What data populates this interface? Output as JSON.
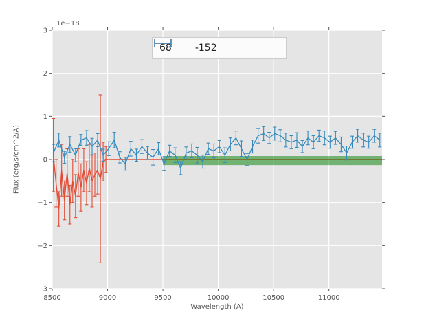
{
  "chart_data": {
    "type": "errorbar",
    "title": "",
    "xlabel": "Wavelength (A)",
    "ylabel": "Flux (erg/s/cm^2/A)",
    "offset_text": "1e−18",
    "xlim": [
      8500,
      11480
    ],
    "ylim": [
      -3,
      3
    ],
    "grid": true,
    "x_ticks": [
      8500,
      9000,
      9500,
      10000,
      10500,
      11000
    ],
    "x_tick_labels": [
      "8500",
      "9000",
      "9500",
      "10000",
      "10500",
      "11000"
    ],
    "y_ticks": [
      3,
      2,
      1,
      0,
      -1,
      -2,
      -3
    ],
    "y_tick_labels": [
      "3",
      "2",
      "1",
      "0",
      "−1",
      "−2",
      "−3"
    ],
    "colors": {
      "red_series": "#E24A33",
      "blue_series": "#348ABD",
      "green_band": "#008000",
      "plot_background": "#E5E5E5",
      "grid": "#FFFFFF",
      "ticks_and_labels": "#555555"
    },
    "legend": {
      "position": "upper center",
      "entries": [
        {
          "label": "68",
          "color": "#E24A33"
        },
        {
          "label": "-152",
          "color": "#348ABD"
        }
      ]
    },
    "series": [
      {
        "name": "68",
        "color": "#E24A33",
        "x": [
          8510,
          8535,
          8560,
          8585,
          8610,
          8635,
          8660,
          8685,
          8710,
          8735,
          8760,
          8785,
          8810,
          8835,
          8860,
          8885,
          8910,
          8935,
          8960,
          8985
        ],
        "y": [
          0.1,
          -0.55,
          -1.15,
          -0.25,
          -0.95,
          -0.3,
          -1.05,
          -0.5,
          -0.85,
          -0.3,
          -0.65,
          -0.25,
          -0.55,
          -0.2,
          -0.5,
          -0.35,
          -0.25,
          -0.45,
          -0.05,
          0.0
        ],
        "yerr": [
          0.85,
          0.55,
          0.4,
          0.6,
          0.45,
          0.55,
          0.45,
          0.5,
          0.5,
          0.55,
          0.55,
          0.5,
          0.5,
          0.55,
          0.6,
          0.5,
          0.55,
          1.95,
          0.45,
          0.3
        ]
      },
      {
        "name": "-152",
        "color": "#348ABD",
        "x": [
          8510,
          8560,
          8610,
          8660,
          8710,
          8760,
          8810,
          8860,
          8910,
          8960,
          9010,
          9060,
          9110,
          9160,
          9210,
          9260,
          9310,
          9360,
          9410,
          9460,
          9510,
          9560,
          9610,
          9660,
          9710,
          9760,
          9810,
          9860,
          9910,
          9960,
          10010,
          10060,
          10110,
          10160,
          10210,
          10260,
          10310,
          10360,
          10410,
          10460,
          10510,
          10560,
          10610,
          10660,
          10710,
          10760,
          10810,
          10860,
          10910,
          10960,
          11010,
          11060,
          11110,
          11160,
          11210,
          11260,
          11310,
          11360,
          11410,
          11460
        ],
        "y": [
          0.15,
          0.45,
          0.05,
          0.35,
          0.1,
          0.45,
          0.5,
          0.3,
          0.45,
          0.1,
          0.25,
          0.45,
          0.05,
          -0.1,
          0.25,
          0.1,
          0.3,
          0.15,
          0.05,
          0.25,
          -0.1,
          0.2,
          0.1,
          -0.2,
          0.15,
          0.2,
          0.1,
          -0.05,
          0.25,
          0.2,
          0.3,
          0.1,
          0.35,
          0.5,
          0.25,
          0.0,
          0.3,
          0.55,
          0.6,
          0.5,
          0.6,
          0.55,
          0.45,
          0.4,
          0.45,
          0.3,
          0.5,
          0.4,
          0.55,
          0.5,
          0.4,
          0.5,
          0.35,
          0.15,
          0.4,
          0.55,
          0.45,
          0.4,
          0.55,
          0.45
        ],
        "yerr": [
          0.2,
          0.16,
          0.14,
          0.18,
          0.15,
          0.13,
          0.17,
          0.19,
          0.15,
          0.14,
          0.16,
          0.18,
          0.13,
          0.15,
          0.17,
          0.14,
          0.16,
          0.15,
          0.18,
          0.14,
          0.16,
          0.13,
          0.17,
          0.15,
          0.14,
          0.16,
          0.18,
          0.15,
          0.13,
          0.16,
          0.14,
          0.17,
          0.15,
          0.16,
          0.18,
          0.14,
          0.15,
          0.17,
          0.16,
          0.13,
          0.15,
          0.14,
          0.16,
          0.15,
          0.17,
          0.14,
          0.16,
          0.15,
          0.13,
          0.16,
          0.14,
          0.15,
          0.17,
          0.16,
          0.14,
          0.15,
          0.16,
          0.14,
          0.15,
          0.16
        ]
      }
    ],
    "red_flat_line": {
      "x_start": 8985,
      "x_end": 11480,
      "y": 0
    },
    "green_band": {
      "x_start": 9500,
      "x_end": 11480,
      "y_top": 0.08,
      "y_bottom": -0.13,
      "opacity": 0.5
    }
  }
}
